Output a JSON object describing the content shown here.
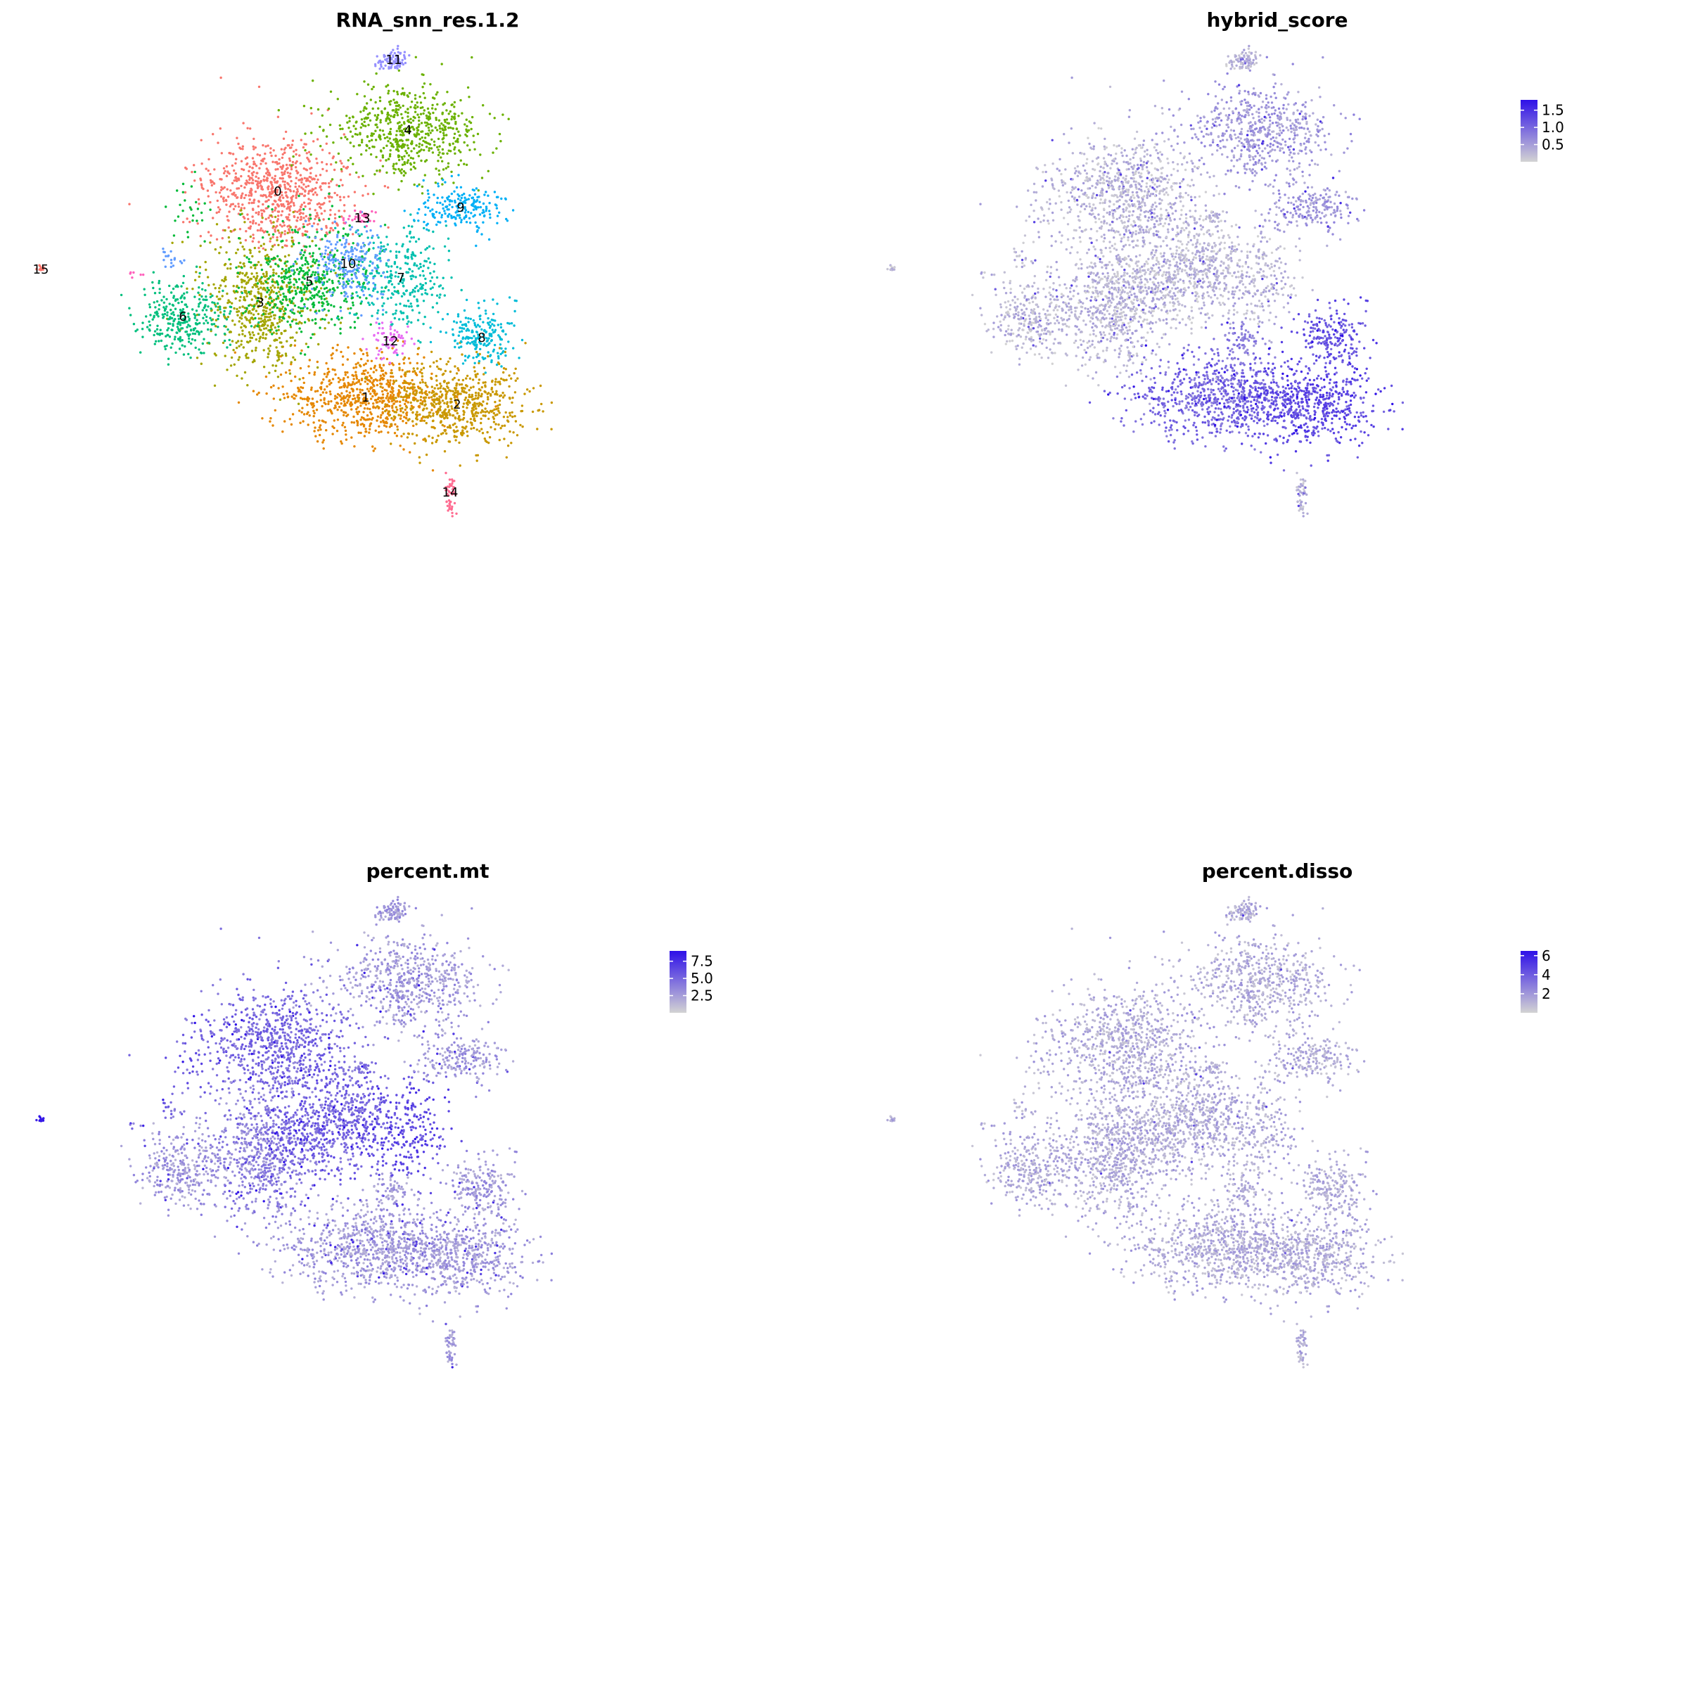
{
  "figure": {
    "type": "umap-feature-plot-grid",
    "background": "#ffffff"
  },
  "chart_data": [
    {
      "type": "scatter",
      "title": "RNA_snn_res.1.2",
      "color_by": "cluster",
      "legend": "none",
      "grid": false,
      "clusters": [
        {
          "id": "0",
          "label": "0",
          "color": "#F8766D",
          "center": [
            395,
            272
          ],
          "spread": [
            95,
            70
          ],
          "n": 750
        },
        {
          "id": "1",
          "label": "1",
          "color": "#E58700",
          "center": [
            520,
            565
          ],
          "spread": [
            105,
            55
          ],
          "n": 700
        },
        {
          "id": "2",
          "label": "2",
          "color": "#C99800",
          "center": [
            650,
            575
          ],
          "spread": [
            85,
            55
          ],
          "n": 600
        },
        {
          "id": "3",
          "label": "3",
          "color": "#A3A500",
          "center": [
            370,
            430
          ],
          "spread": [
            75,
            90
          ],
          "n": 600
        },
        {
          "id": "4",
          "label": "4",
          "color": "#6BB100",
          "center": [
            580,
            185
          ],
          "spread": [
            100,
            55
          ],
          "n": 600
        },
        {
          "id": "5",
          "label": "5",
          "color": "#00BA38",
          "center": [
            440,
            400
          ],
          "spread": [
            75,
            70
          ],
          "n": 450
        },
        {
          "id": "6",
          "label": "6",
          "color": "#00BF7D",
          "center": [
            260,
            450
          ],
          "spread": [
            60,
            45
          ],
          "n": 300
        },
        {
          "id": "7",
          "label": "7",
          "color": "#00C0AF",
          "center": [
            570,
            395
          ],
          "spread": [
            65,
            65
          ],
          "n": 300
        },
        {
          "id": "8",
          "label": "8",
          "color": "#00BCD8",
          "center": [
            685,
            480
          ],
          "spread": [
            45,
            35
          ],
          "n": 200
        },
        {
          "id": "9",
          "label": "9",
          "color": "#00B0F6",
          "center": [
            655,
            295
          ],
          "spread": [
            55,
            30
          ],
          "n": 200
        },
        {
          "id": "10",
          "label": "10",
          "color": "#619CFF",
          "center": [
            495,
            375
          ],
          "spread": [
            45,
            55
          ],
          "n": 220
        },
        {
          "id": "11",
          "label": "11",
          "color": "#9590FF",
          "center": [
            560,
            85
          ],
          "spread": [
            20,
            15
          ],
          "n": 90
        },
        {
          "id": "12",
          "label": "12",
          "color": "#E76BF3",
          "center": [
            555,
            485
          ],
          "spread": [
            25,
            25
          ],
          "n": 70
        },
        {
          "id": "13",
          "label": "13",
          "color": "#FF62BC",
          "center": [
            515,
            310
          ],
          "spread": [
            20,
            10
          ],
          "n": 40
        },
        {
          "id": "14",
          "label": "14",
          "color": "#FF6C91",
          "center": [
            640,
            700
          ],
          "spread": [
            6,
            30
          ],
          "n": 45
        },
        {
          "id": "15",
          "label": "15",
          "color": "#F8766D",
          "center": [
            58,
            383
          ],
          "spread": [
            5,
            3
          ],
          "n": 15
        }
      ]
    },
    {
      "type": "scatter",
      "title": "hybrid_score",
      "color_by": "continuous",
      "legend": "top-right colorbar",
      "grid": false,
      "colorbar": {
        "low_color": "#D3D3D3",
        "high_color": "#2E10E8",
        "range": [
          0,
          1.8
        ],
        "ticks": [
          "1.5",
          "1.0",
          "0.5"
        ]
      },
      "expression_pattern": "higher in lower-right region (clusters 1, 2, 8)"
    },
    {
      "type": "scatter",
      "title": "percent.mt",
      "color_by": "continuous",
      "legend": "top-right colorbar",
      "grid": false,
      "colorbar": {
        "low_color": "#D3D3D3",
        "high_color": "#2E10E8",
        "range": [
          0,
          9
        ],
        "ticks": [
          "7.5",
          "5.0",
          "2.5"
        ]
      },
      "expression_pattern": "higher in center and upper-left region (clusters 0, 5, 7)"
    },
    {
      "type": "scatter",
      "title": "percent.disso",
      "color_by": "continuous",
      "legend": "top-right colorbar",
      "grid": false,
      "colorbar": {
        "low_color": "#D3D3D3",
        "high_color": "#2E10E8",
        "range": [
          0,
          6.5
        ],
        "ticks": [
          "6",
          "4",
          "2"
        ]
      },
      "expression_pattern": "uniformly low"
    }
  ]
}
